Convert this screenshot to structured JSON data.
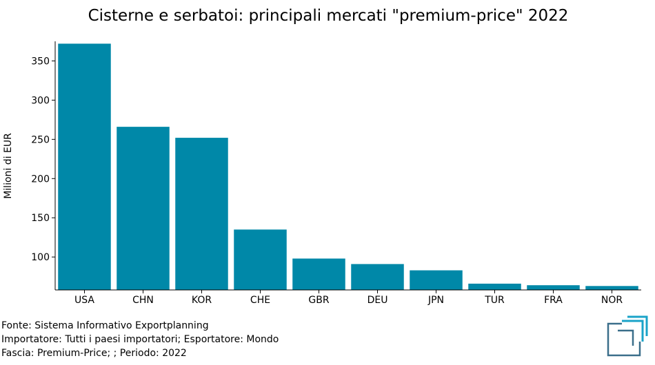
{
  "chart_data": {
    "type": "bar",
    "title": "Cisterne e serbatoi: principali mercati \"premium-price\" 2022",
    "xlabel": "",
    "ylabel": "Milioni di EUR",
    "categories": [
      "USA",
      "CHN",
      "KOR",
      "CHE",
      "GBR",
      "DEU",
      "JPN",
      "TUR",
      "FRA",
      "NOR"
    ],
    "values": [
      372,
      266,
      252,
      135,
      98,
      91,
      83,
      66,
      64,
      63
    ],
    "ylim": [
      58,
      375
    ],
    "yticks": [
      100,
      150,
      200,
      250,
      300,
      350
    ],
    "grid": false,
    "bar_color": "#0088a8"
  },
  "footer": {
    "line1": "Fonte: Sistema Informativo Exportplanning",
    "line2": "Importatore: Tutti i paesi importatori; Esportatore: Mondo",
    "line3": "Fascia: Premium-Price; ; Periodo: 2022"
  },
  "logo": {
    "icon": "exportplanning-logo-icon",
    "colors": [
      "#3a6e8a",
      "#1aa3c8"
    ]
  }
}
